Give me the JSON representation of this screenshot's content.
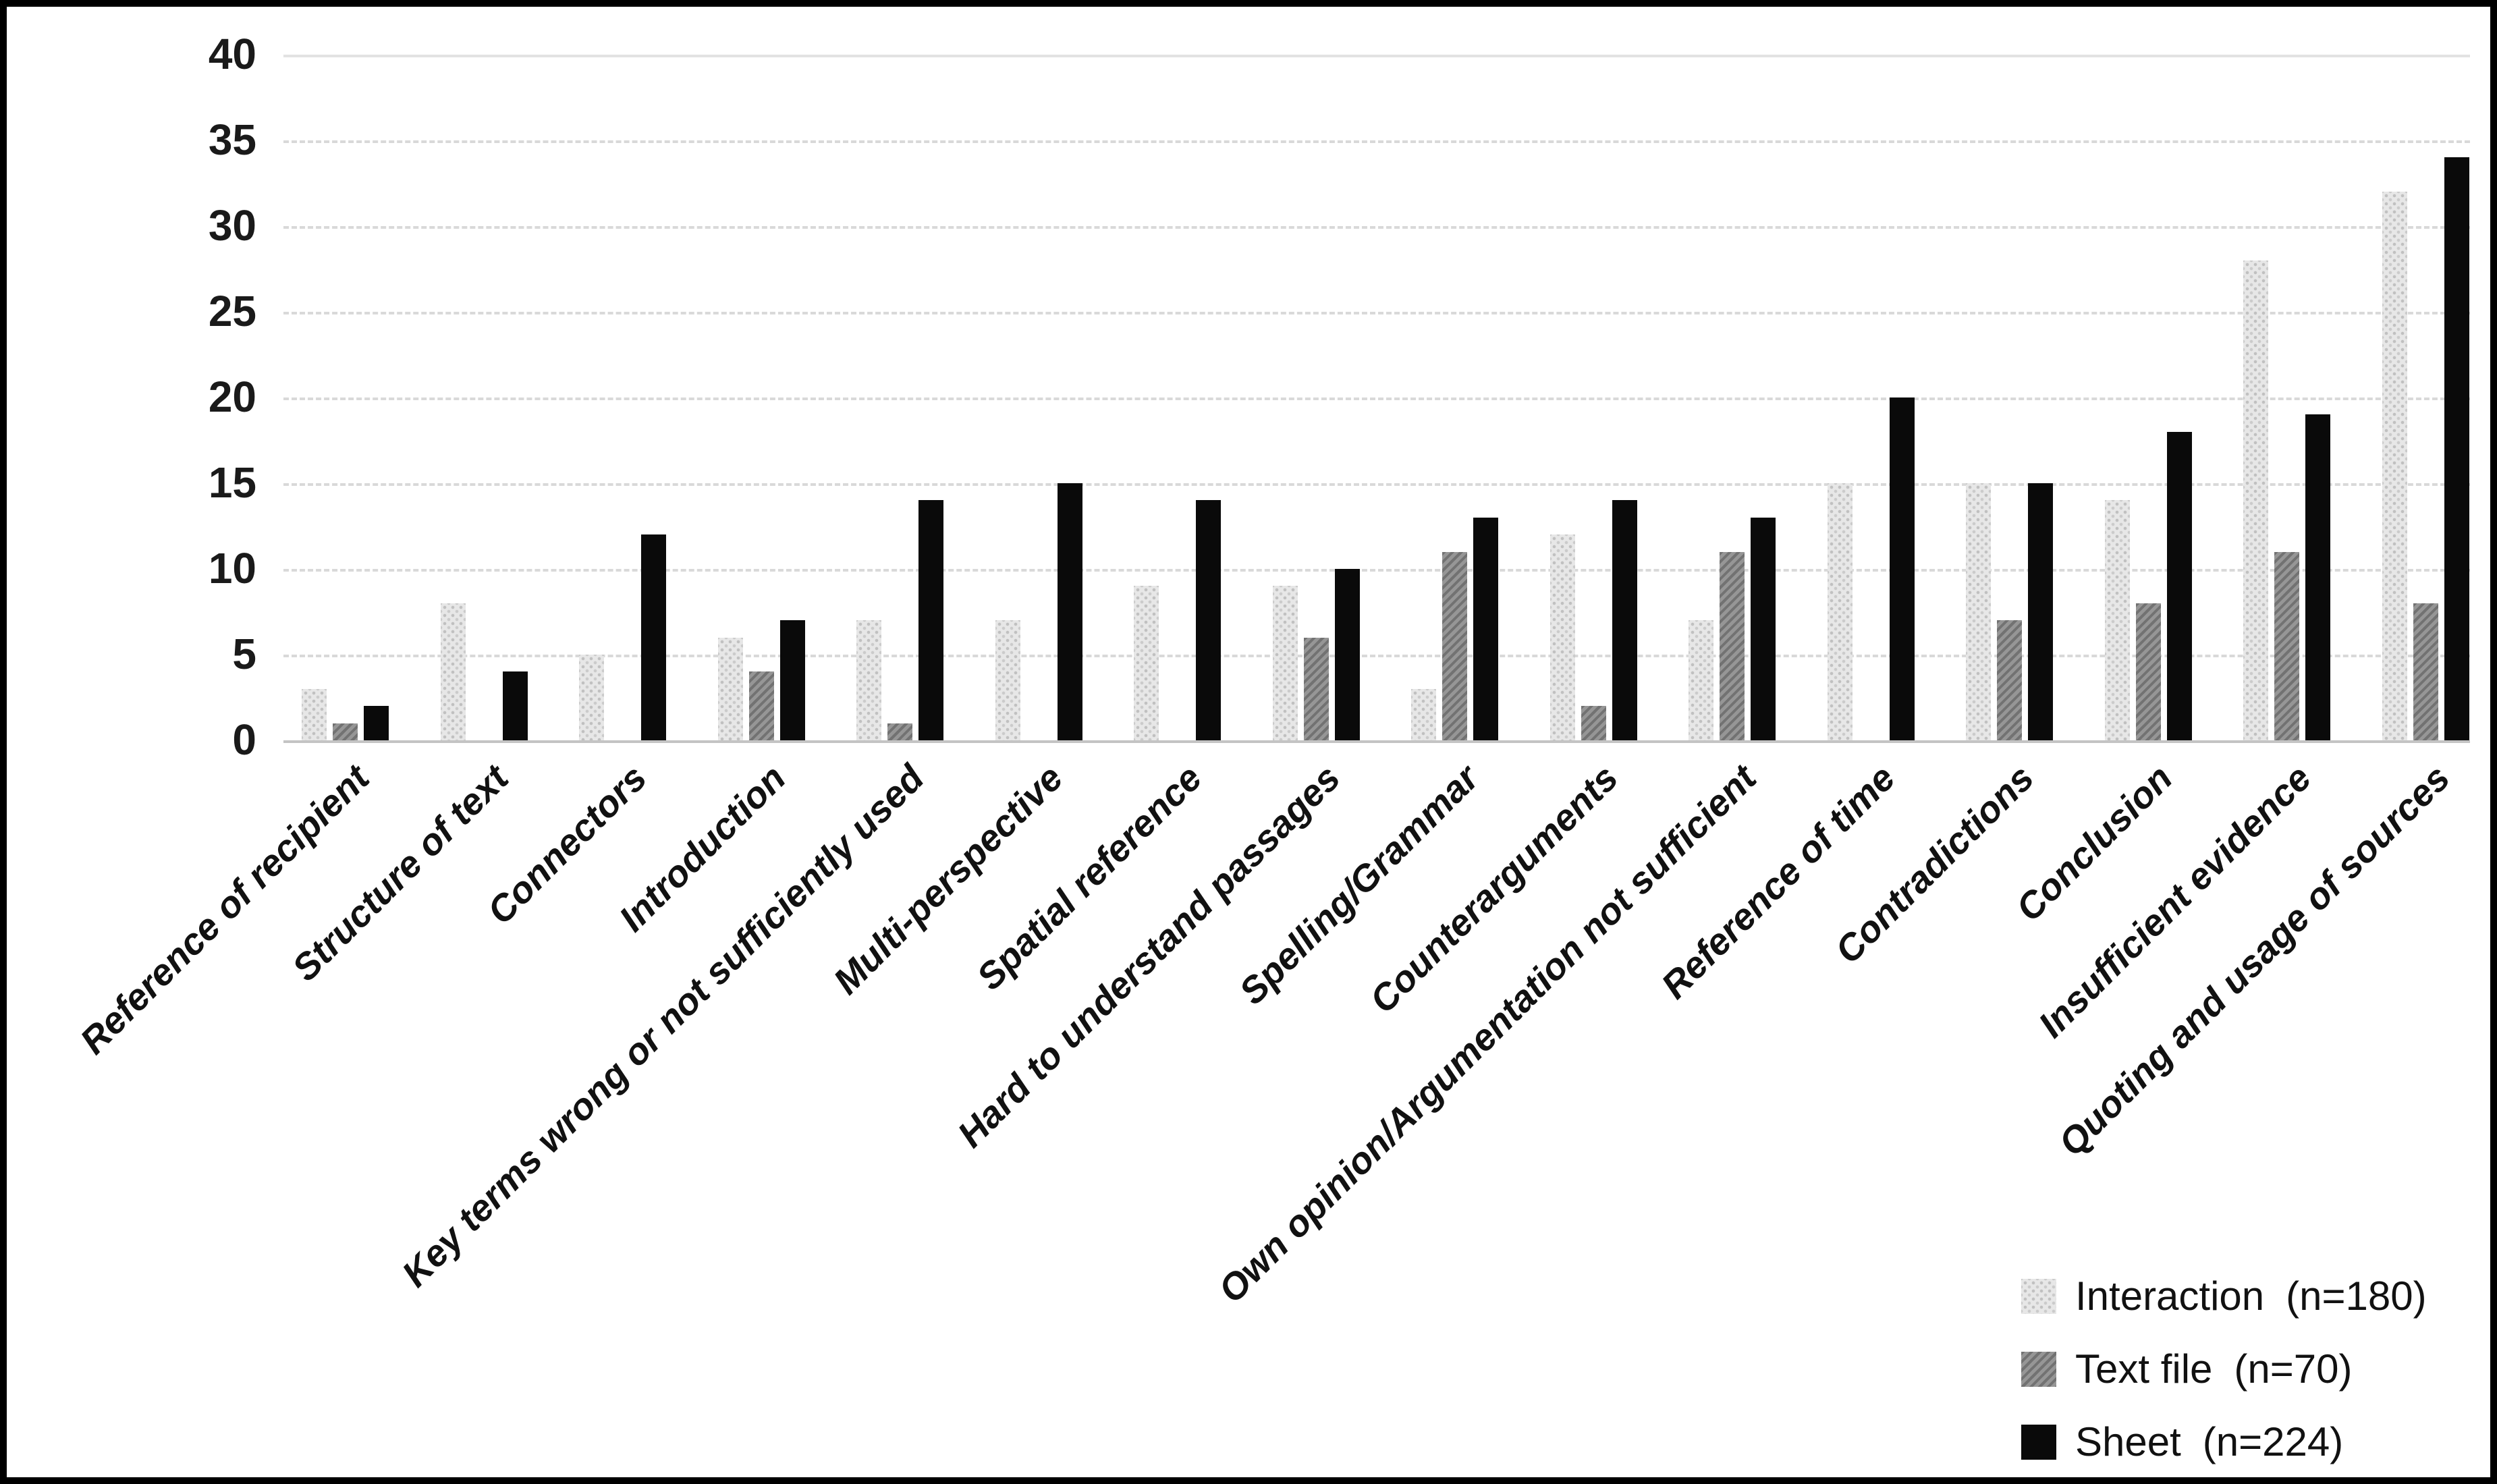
{
  "colors": {
    "interaction": "#e7e7e7",
    "textfile": "#8f8f8f",
    "sheet": "#0a0a0a",
    "gridline": "#d9d9d9",
    "gridline_top": "#e2e2e2",
    "axis_line": "#c4c4c4",
    "axis_text": "#1a1a1a",
    "frame": "#000000"
  },
  "chart_data": {
    "type": "bar",
    "title": "",
    "xlabel": "",
    "ylabel": "",
    "ylim": [
      0,
      40
    ],
    "yticks": [
      0,
      5,
      10,
      15,
      20,
      25,
      30,
      35,
      40
    ],
    "grid": "horizontal-dashed",
    "legend_position": "bottom-right",
    "categories": [
      "Reference of recipient",
      "Structure of text",
      "Connectors",
      "Introduction",
      "Key terms wrong or not sufficiently used",
      "Multi-perspective",
      "Spatial reference",
      "Hard to understand passages",
      "Spelling/Grammar",
      "Counterarguments",
      "Own opinion/Argumentation not sufficient",
      "Reference of time",
      "Contradictions",
      "Conclusion",
      "Insufficient evidence",
      "Quoting and usage of sources"
    ],
    "series": [
      {
        "label": "Interaction",
        "n": "(n=180)",
        "values": [
          3,
          8,
          5,
          6,
          7,
          7,
          9,
          9,
          3,
          12,
          7,
          15,
          15,
          14,
          28,
          32
        ]
      },
      {
        "label": "Text file",
        "n": "(n=70)",
        "values": [
          1,
          0,
          0,
          4,
          1,
          0,
          0,
          6,
          11,
          2,
          11,
          0,
          7,
          8,
          11,
          8
        ]
      },
      {
        "label": "Sheet",
        "n": "(n=224)",
        "values": [
          2,
          4,
          12,
          7,
          14,
          15,
          14,
          10,
          13,
          14,
          13,
          20,
          15,
          18,
          19,
          34
        ]
      }
    ]
  }
}
